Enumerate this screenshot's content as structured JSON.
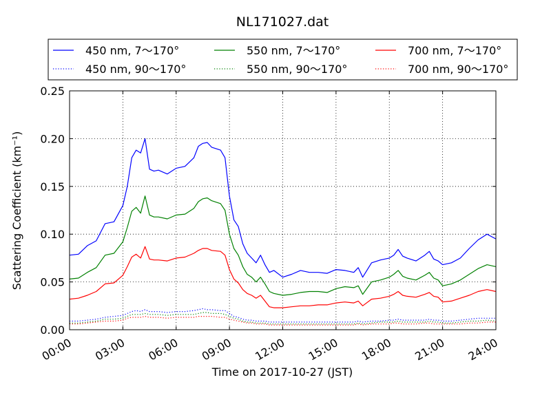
{
  "chart_data": {
    "type": "line",
    "title": "NL171027.dat",
    "xlabel": "Time on 2017-10-27 (JST)",
    "ylabel": "Scattering Coefficient (km⁻¹)",
    "x_unit": "hour of day (JST)",
    "xlim": [
      0,
      24
    ],
    "ylim": [
      0,
      0.25
    ],
    "x_ticks": [
      0,
      3,
      6,
      9,
      12,
      15,
      18,
      21,
      24
    ],
    "x_tick_labels": [
      "00:00",
      "03:00",
      "06:00",
      "09:00",
      "12:00",
      "15:00",
      "18:00",
      "21:00",
      "24:00"
    ],
    "y_ticks": [
      0,
      0.05,
      0.1,
      0.15,
      0.2,
      0.25
    ],
    "y_tick_labels": [
      "0.00",
      "0.05",
      "0.10",
      "0.15",
      "0.20",
      "0.25"
    ],
    "grid": true,
    "legend_position": "top (above plot)",
    "x": [
      0,
      0.5,
      1,
      1.5,
      2,
      2.5,
      3,
      3.25,
      3.5,
      3.75,
      4,
      4.25,
      4.5,
      4.75,
      5,
      5.5,
      6,
      6.5,
      7,
      7.25,
      7.5,
      7.75,
      8,
      8.5,
      8.75,
      9,
      9.25,
      9.5,
      9.75,
      10,
      10.25,
      10.5,
      10.75,
      11,
      11.25,
      11.5,
      12,
      12.5,
      13,
      13.5,
      14,
      14.5,
      15,
      15.5,
      16,
      16.25,
      16.5,
      17,
      17.5,
      18,
      18.25,
      18.5,
      18.75,
      19,
      19.5,
      20,
      20.25,
      20.5,
      20.75,
      21,
      21.5,
      22,
      22.5,
      23,
      23.5,
      24
    ],
    "series": [
      {
        "name": "450 nm, 7～170°",
        "color": "#0000ff",
        "style": "solid",
        "values": [
          0.078,
          0.079,
          0.088,
          0.093,
          0.111,
          0.113,
          0.13,
          0.15,
          0.18,
          0.188,
          0.185,
          0.2,
          0.168,
          0.166,
          0.167,
          0.163,
          0.169,
          0.171,
          0.18,
          0.192,
          0.195,
          0.196,
          0.191,
          0.188,
          0.18,
          0.14,
          0.115,
          0.108,
          0.09,
          0.08,
          0.075,
          0.07,
          0.078,
          0.068,
          0.06,
          0.062,
          0.055,
          0.058,
          0.062,
          0.06,
          0.06,
          0.059,
          0.063,
          0.062,
          0.06,
          0.065,
          0.055,
          0.07,
          0.073,
          0.075,
          0.078,
          0.084,
          0.077,
          0.075,
          0.072,
          0.078,
          0.082,
          0.074,
          0.072,
          0.068,
          0.07,
          0.075,
          0.085,
          0.094,
          0.1,
          0.095
        ]
      },
      {
        "name": "450 nm, 90～170°",
        "color": "#0000ff",
        "style": "dotted",
        "values": [
          0.009,
          0.009,
          0.01,
          0.011,
          0.013,
          0.014,
          0.015,
          0.017,
          0.019,
          0.02,
          0.019,
          0.021,
          0.019,
          0.019,
          0.019,
          0.018,
          0.019,
          0.019,
          0.02,
          0.021,
          0.022,
          0.021,
          0.021,
          0.02,
          0.02,
          0.017,
          0.014,
          0.013,
          0.011,
          0.01,
          0.01,
          0.009,
          0.009,
          0.009,
          0.008,
          0.008,
          0.008,
          0.008,
          0.008,
          0.008,
          0.008,
          0.008,
          0.008,
          0.008,
          0.008,
          0.009,
          0.008,
          0.009,
          0.009,
          0.01,
          0.01,
          0.011,
          0.01,
          0.01,
          0.01,
          0.01,
          0.011,
          0.01,
          0.01,
          0.009,
          0.009,
          0.01,
          0.011,
          0.012,
          0.012,
          0.012
        ]
      },
      {
        "name": "550 nm, 7～170°",
        "color": "#008000",
        "style": "solid",
        "values": [
          0.053,
          0.054,
          0.06,
          0.065,
          0.078,
          0.08,
          0.092,
          0.107,
          0.124,
          0.128,
          0.122,
          0.14,
          0.12,
          0.118,
          0.118,
          0.116,
          0.12,
          0.121,
          0.127,
          0.134,
          0.137,
          0.138,
          0.135,
          0.132,
          0.125,
          0.1,
          0.085,
          0.078,
          0.066,
          0.058,
          0.055,
          0.05,
          0.055,
          0.048,
          0.04,
          0.038,
          0.036,
          0.037,
          0.039,
          0.04,
          0.04,
          0.039,
          0.043,
          0.045,
          0.044,
          0.046,
          0.037,
          0.05,
          0.052,
          0.055,
          0.058,
          0.062,
          0.056,
          0.054,
          0.052,
          0.057,
          0.06,
          0.054,
          0.052,
          0.046,
          0.048,
          0.052,
          0.058,
          0.064,
          0.068,
          0.066
        ]
      },
      {
        "name": "550 nm, 90～170°",
        "color": "#008000",
        "style": "dotted",
        "values": [
          0.007,
          0.007,
          0.008,
          0.009,
          0.011,
          0.011,
          0.012,
          0.014,
          0.016,
          0.016,
          0.016,
          0.017,
          0.016,
          0.016,
          0.016,
          0.015,
          0.016,
          0.016,
          0.016,
          0.017,
          0.018,
          0.018,
          0.017,
          0.017,
          0.016,
          0.014,
          0.012,
          0.011,
          0.009,
          0.008,
          0.008,
          0.007,
          0.007,
          0.007,
          0.006,
          0.006,
          0.006,
          0.006,
          0.006,
          0.006,
          0.006,
          0.006,
          0.006,
          0.006,
          0.006,
          0.007,
          0.006,
          0.007,
          0.008,
          0.008,
          0.008,
          0.009,
          0.008,
          0.008,
          0.008,
          0.008,
          0.009,
          0.008,
          0.008,
          0.007,
          0.007,
          0.008,
          0.009,
          0.009,
          0.01,
          0.009
        ]
      },
      {
        "name": "700 nm, 7～170°",
        "color": "#ff0000",
        "style": "solid",
        "values": [
          0.032,
          0.033,
          0.036,
          0.04,
          0.048,
          0.049,
          0.057,
          0.066,
          0.076,
          0.079,
          0.075,
          0.087,
          0.074,
          0.073,
          0.073,
          0.072,
          0.075,
          0.076,
          0.08,
          0.083,
          0.085,
          0.085,
          0.083,
          0.082,
          0.078,
          0.063,
          0.053,
          0.049,
          0.042,
          0.038,
          0.036,
          0.033,
          0.036,
          0.03,
          0.024,
          0.023,
          0.023,
          0.024,
          0.025,
          0.025,
          0.026,
          0.026,
          0.028,
          0.029,
          0.028,
          0.03,
          0.025,
          0.032,
          0.033,
          0.035,
          0.037,
          0.04,
          0.036,
          0.035,
          0.034,
          0.037,
          0.039,
          0.035,
          0.034,
          0.029,
          0.03,
          0.033,
          0.036,
          0.04,
          0.042,
          0.04
        ]
      },
      {
        "name": "700 nm, 90～170°",
        "color": "#ff0000",
        "style": "dotted",
        "values": [
          0.006,
          0.006,
          0.007,
          0.008,
          0.009,
          0.009,
          0.01,
          0.012,
          0.013,
          0.013,
          0.013,
          0.014,
          0.013,
          0.013,
          0.013,
          0.012,
          0.013,
          0.013,
          0.013,
          0.014,
          0.014,
          0.014,
          0.014,
          0.013,
          0.013,
          0.011,
          0.01,
          0.009,
          0.008,
          0.007,
          0.007,
          0.006,
          0.006,
          0.006,
          0.005,
          0.005,
          0.005,
          0.005,
          0.005,
          0.005,
          0.005,
          0.005,
          0.005,
          0.005,
          0.005,
          0.006,
          0.005,
          0.006,
          0.006,
          0.006,
          0.007,
          0.007,
          0.006,
          0.006,
          0.006,
          0.007,
          0.007,
          0.006,
          0.006,
          0.006,
          0.006,
          0.006,
          0.007,
          0.007,
          0.008,
          0.008
        ]
      }
    ]
  }
}
